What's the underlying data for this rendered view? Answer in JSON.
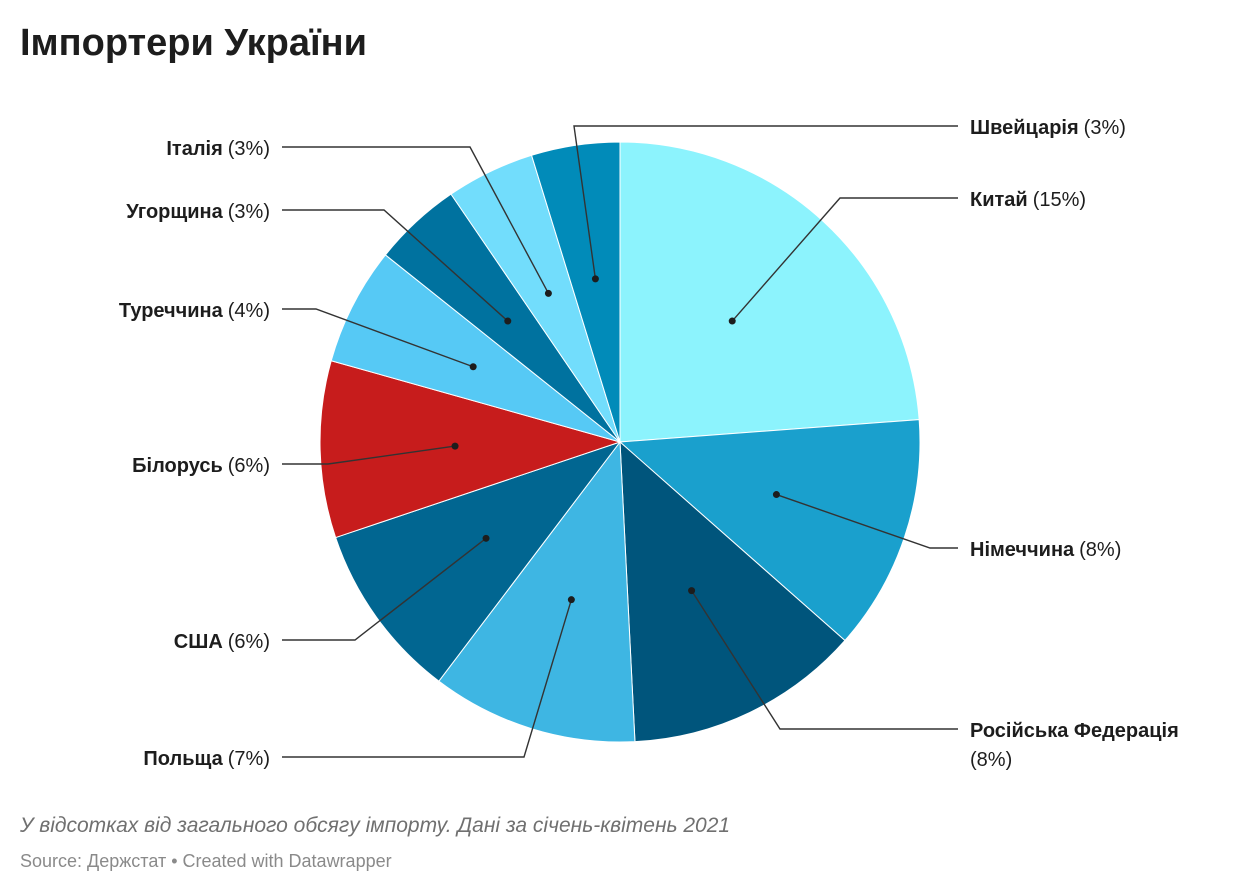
{
  "title": "Імпортери України",
  "caption": "У відсотках від загального обсягу імпорту. Дані за січень-квітень 2021",
  "source": "Source: Держстат • Created with Datawrapper",
  "chart_data": {
    "type": "pie",
    "title": "Імпортери України",
    "value_unit": "%",
    "slices": [
      {
        "name": "Китай",
        "label": "(15%)",
        "value": 15,
        "color": "#8cf3fd"
      },
      {
        "name": "Німеччина",
        "label": "(8%)",
        "value": 8,
        "color": "#1aa0cd"
      },
      {
        "name": "Російська Федерація",
        "label": "(8%)",
        "value": 8,
        "color": "#00557c"
      },
      {
        "name": "Польща",
        "label": "(7%)",
        "value": 7,
        "color": "#3eb6e3"
      },
      {
        "name": "США",
        "label": "(6%)",
        "value": 6,
        "color": "#016691"
      },
      {
        "name": "Білорусь",
        "label": "(6%)",
        "value": 6,
        "color": "#c71c1c"
      },
      {
        "name": "Туреччина",
        "label": "(4%)",
        "value": 4,
        "color": "#56c9f5"
      },
      {
        "name": "Угорщина",
        "label": "(3%)",
        "value": 3,
        "color": "#00729f"
      },
      {
        "name": "Італія",
        "label": "(3%)",
        "value": 3,
        "color": "#72ddfc"
      },
      {
        "name": "Швейцарія",
        "label": "(3%)",
        "value": 3,
        "color": "#018bb9"
      }
    ]
  }
}
